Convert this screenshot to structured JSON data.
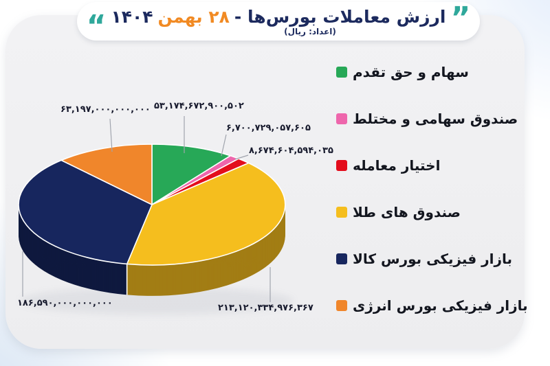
{
  "header": {
    "quote_right": "”",
    "quote_left": "“",
    "title_part1": "ارزش معاملات بورس‌ها - ",
    "title_part2": "۲۸ بهمن ",
    "title_part3": "۱۴۰۴",
    "subtitle": "(اعداد: ریال)"
  },
  "colors": {
    "title_navy": "#1c2a5e",
    "title_orange": "#f18a23",
    "quote_teal": "#2fa89b",
    "card_bg": "#f0f0f2",
    "leader_line": "#a0a4ad"
  },
  "chart_data": {
    "type": "pie",
    "style": "3d",
    "title": "ارزش معاملات بورس‌ها - ۲۸ بهمن ۱۴۰۴",
    "unit_note": "(اعداد: ریال)",
    "start_angle": "12-oclock",
    "direction": "clockwise",
    "legend_position": "right",
    "slices": [
      {
        "label": "سهام و حق تقدم",
        "value": 53174672900502,
        "value_fa": "۵۳,۱۷۴,۶۷۲,۹۰۰,۵۰۲",
        "color": "#27a857"
      },
      {
        "label": "صندوق سهامی و مختلط",
        "value": 6700729057605,
        "value_fa": "۶,۷۰۰,۷۲۹,۰۵۷,۶۰۵",
        "color": "#ee66ac"
      },
      {
        "label": "اختیار معامله",
        "value": 8674604594035,
        "value_fa": "۸,۶۷۴,۶۰۴,۵۹۴,۰۳۵",
        "color": "#e30d1c"
      },
      {
        "label": "صندوق های طلا",
        "value": 213120334976367,
        "value_fa": "۲۱۳,۱۲۰,۳۳۴,۹۷۶,۳۶۷",
        "color": "#f5be1e"
      },
      {
        "label": "بازار فیزیکی بورس کالا",
        "value": 186590000000000,
        "value_fa": "۱۸۶,۵۹۰,۰۰۰,۰۰۰,۰۰۰",
        "color": "#17265e"
      },
      {
        "label": "بازار فیزیکی بورس انرژی",
        "value": 63197000000000,
        "value_fa": "۶۳,۱۹۷,۰۰۰,۰۰۰,۰۰۰",
        "color": "#f0862b"
      }
    ]
  }
}
